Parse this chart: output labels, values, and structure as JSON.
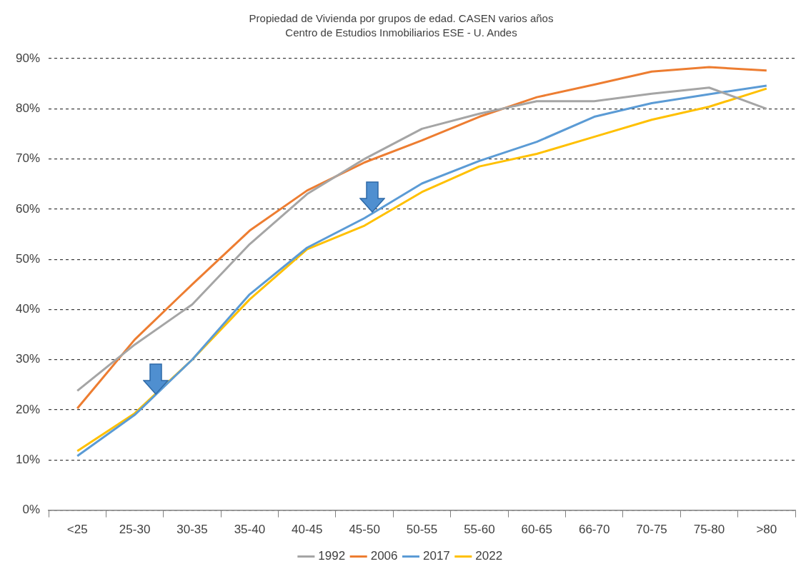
{
  "chart_data": {
    "type": "line",
    "title": "Propiedad de Vivienda por grupos de edad. CASEN varios años",
    "subtitle": "Centro de Estudios Inmobiliarios ESE - U. Andes",
    "categories": [
      "<25",
      "25-30",
      "30-35",
      "35-40",
      "40-45",
      "45-50",
      "50-55",
      "55-60",
      "60-65",
      "66-70",
      "70-75",
      "75-80",
      ">80"
    ],
    "series": [
      {
        "name": "1992",
        "color": "#a5a5a5",
        "values": [
          23.8,
          33,
          41,
          53,
          63,
          70,
          76,
          79,
          81.5,
          81.5,
          83,
          84.2,
          80
        ]
      },
      {
        "name": "2006",
        "color": "#ed7d31",
        "values": [
          20.3,
          34,
          45,
          55.7,
          63.7,
          69.3,
          73.7,
          78.4,
          82.3,
          84.8,
          87.4,
          88.3,
          87.6
        ]
      },
      {
        "name": "2017",
        "color": "#5b9bd5",
        "values": [
          10.8,
          19,
          30,
          43,
          52.3,
          58.2,
          65.1,
          69.6,
          73.4,
          78.4,
          81.1,
          82.9,
          84.6
        ]
      },
      {
        "name": "2022",
        "color": "#ffc000",
        "values": [
          11.8,
          19.3,
          30,
          42,
          52,
          56.7,
          63.4,
          68.5,
          71,
          74.4,
          77.8,
          80.4,
          84
        ]
      }
    ],
    "ylim": [
      0,
      90
    ],
    "yticks": [
      {
        "value": 0,
        "label": "0%"
      },
      {
        "value": 10,
        "label": "10%"
      },
      {
        "value": 20,
        "label": "20%"
      },
      {
        "value": 30,
        "label": "30%"
      },
      {
        "value": 40,
        "label": "40%"
      },
      {
        "value": 50,
        "label": "50%"
      },
      {
        "value": 60,
        "label": "60%"
      },
      {
        "value": 70,
        "label": "70%"
      },
      {
        "value": 80,
        "label": "80%"
      },
      {
        "value": 90,
        "label": "90%"
      }
    ],
    "grid": "y",
    "legend": "bottom",
    "marker": "none",
    "line_style": "solid"
  }
}
